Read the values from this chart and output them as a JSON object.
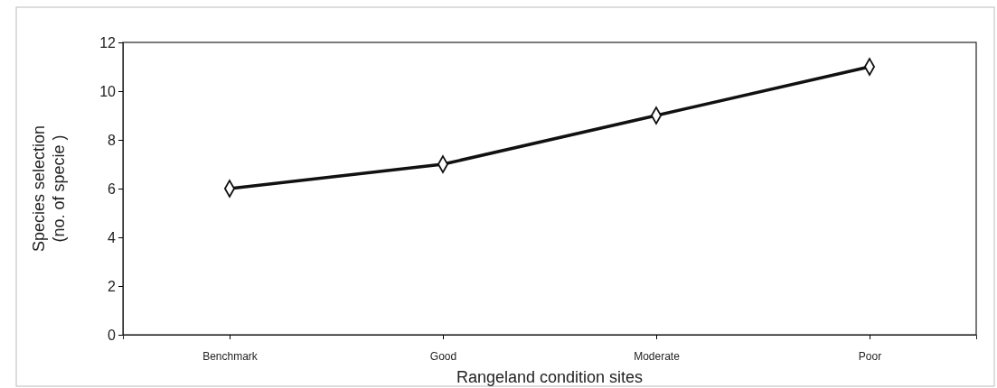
{
  "chart_data": {
    "type": "line",
    "xlabel": "Rangeland condition sites",
    "ylabel": "Species selection\n(no. of specie )",
    "categories": [
      "Benchmark",
      "Good",
      "Moderate",
      "Poor"
    ],
    "series": [
      {
        "color": "#111111",
        "values": [
          6,
          7,
          9,
          11
        ]
      }
    ],
    "ylim": [
      0,
      12
    ],
    "yticks": [
      0,
      2,
      4,
      6,
      8,
      10,
      12
    ],
    "grid": false,
    "marker": "diamond",
    "line_style": "solid"
  }
}
